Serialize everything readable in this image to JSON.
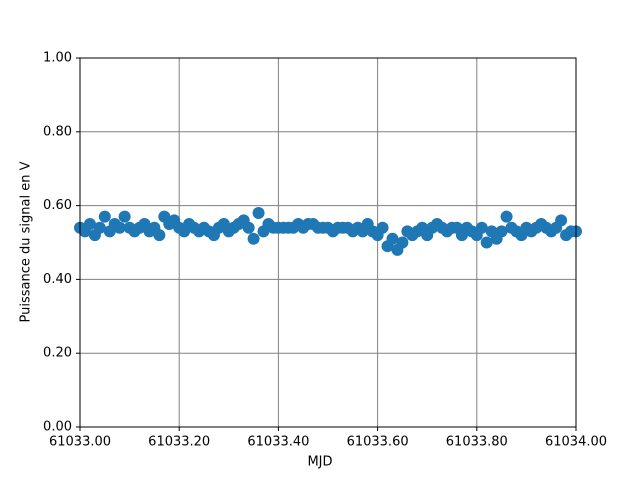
{
  "chart_data": {
    "type": "scatter",
    "xlabel": "MJD",
    "ylabel": "Puissance du signal en V",
    "x": [
      61033.0,
      61033.01,
      61033.02,
      61033.03,
      61033.04,
      61033.05,
      61033.06,
      61033.07,
      61033.08,
      61033.09,
      61033.1,
      61033.11,
      61033.12,
      61033.13,
      61033.14,
      61033.15,
      61033.16,
      61033.17,
      61033.18,
      61033.19,
      61033.2,
      61033.21,
      61033.22,
      61033.23,
      61033.24,
      61033.25,
      61033.26,
      61033.27,
      61033.28,
      61033.29,
      61033.3,
      61033.31,
      61033.32,
      61033.33,
      61033.34,
      61033.35,
      61033.36,
      61033.37,
      61033.38,
      61033.39,
      61033.4,
      61033.41,
      61033.42,
      61033.43,
      61033.44,
      61033.45,
      61033.46,
      61033.47,
      61033.48,
      61033.49,
      61033.5,
      61033.51,
      61033.52,
      61033.53,
      61033.54,
      61033.55,
      61033.56,
      61033.57,
      61033.58,
      61033.59,
      61033.6,
      61033.61,
      61033.62,
      61033.63,
      61033.64,
      61033.65,
      61033.66,
      61033.67,
      61033.68,
      61033.69,
      61033.7,
      61033.71,
      61033.72,
      61033.73,
      61033.74,
      61033.75,
      61033.76,
      61033.77,
      61033.78,
      61033.79,
      61033.8,
      61033.81,
      61033.82,
      61033.83,
      61033.84,
      61033.85,
      61033.86,
      61033.87,
      61033.88,
      61033.89,
      61033.9,
      61033.91,
      61033.92,
      61033.93,
      61033.94,
      61033.95,
      61033.96,
      61033.97,
      61033.98,
      61033.99,
      61034.0
    ],
    "series": [
      {
        "color": "#1f77b4",
        "values": [
          0.54,
          0.53,
          0.55,
          0.52,
          0.54,
          0.57,
          0.53,
          0.55,
          0.54,
          0.57,
          0.54,
          0.53,
          0.54,
          0.55,
          0.53,
          0.54,
          0.52,
          0.57,
          0.55,
          0.56,
          0.54,
          0.53,
          0.55,
          0.54,
          0.53,
          0.54,
          0.53,
          0.52,
          0.54,
          0.55,
          0.53,
          0.54,
          0.55,
          0.56,
          0.54,
          0.51,
          0.58,
          0.53,
          0.55,
          0.54,
          0.54,
          0.54,
          0.54,
          0.54,
          0.55,
          0.54,
          0.55,
          0.55,
          0.54,
          0.54,
          0.54,
          0.53,
          0.54,
          0.54,
          0.54,
          0.53,
          0.54,
          0.53,
          0.55,
          0.53,
          0.52,
          0.54,
          0.49,
          0.51,
          0.48,
          0.5,
          0.53,
          0.52,
          0.53,
          0.54,
          0.52,
          0.54,
          0.55,
          0.54,
          0.53,
          0.54,
          0.54,
          0.52,
          0.54,
          0.53,
          0.52,
          0.54,
          0.5,
          0.53,
          0.51,
          0.53,
          0.57,
          0.54,
          0.53,
          0.52,
          0.54,
          0.53,
          0.54,
          0.55,
          0.54,
          0.53,
          0.54,
          0.56,
          0.52,
          0.53,
          0.53
        ]
      }
    ],
    "xlim": [
      61033,
      61034
    ],
    "xticks": [
      {
        "value": 61033,
        "label": "61033.00"
      },
      {
        "value": 61033.2,
        "label": "61033.20"
      },
      {
        "value": 61033.4,
        "label": "61033.40"
      },
      {
        "value": 61033.6,
        "label": "61033.60"
      },
      {
        "value": 61033.8,
        "label": "61033.80"
      },
      {
        "value": 61034,
        "label": "61034.00"
      }
    ],
    "ylim": [
      0,
      1
    ],
    "yticks": [
      {
        "value": 0,
        "label": "0.00"
      },
      {
        "value": 0.2,
        "label": "0.20"
      },
      {
        "value": 0.4,
        "label": "0.40"
      },
      {
        "value": 0.6,
        "label": "0.60"
      },
      {
        "value": 0.8,
        "label": "0.80"
      },
      {
        "value": 1,
        "label": "1.00"
      }
    ],
    "grid": true
  }
}
